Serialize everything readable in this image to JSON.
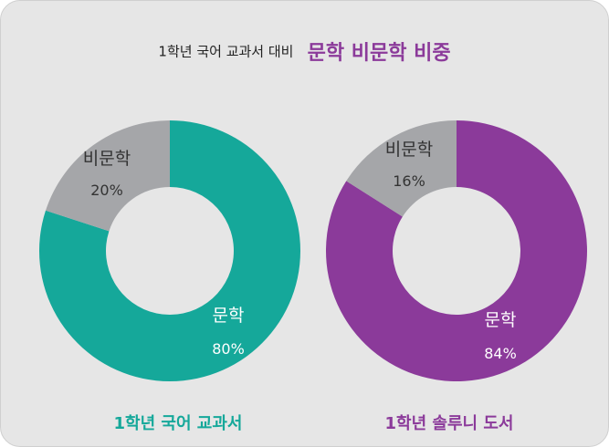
{
  "title": {
    "prefix": "1학년 국어 교과서 대비",
    "main": "문학 비문학 비중"
  },
  "colors": {
    "accent_title": "#8b3a9a",
    "teal": "#15a89a",
    "purple": "#8b3a9a",
    "gray": "#a5a6a9"
  },
  "chart_data": [
    {
      "type": "pie",
      "donut": true,
      "caption": "1학년 국어 교과서",
      "caption_color": "#15a89a",
      "slices": [
        {
          "label": "문학",
          "value": 80,
          "value_label": "80%",
          "color": "#15a89a"
        },
        {
          "label": "비문학",
          "value": 20,
          "value_label": "20%",
          "color": "#a5a6a9"
        }
      ]
    },
    {
      "type": "pie",
      "donut": true,
      "caption": "1학년 솔루니 도서",
      "caption_color": "#8b3a9a",
      "slices": [
        {
          "label": "문학",
          "value": 84,
          "value_label": "84%",
          "color": "#8b3a9a"
        },
        {
          "label": "비문학",
          "value": 16,
          "value_label": "16%",
          "color": "#a5a6a9"
        }
      ]
    }
  ]
}
